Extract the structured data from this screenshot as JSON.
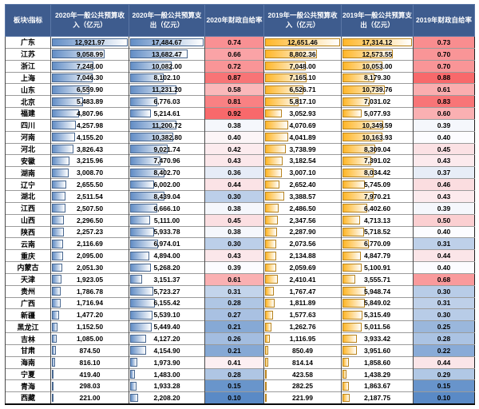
{
  "chart_data": {
    "type": "table",
    "title": "",
    "columns": [
      "板块\\指标",
      "2020年一般公共预算收入（亿元）",
      "2020年一般公共预算支出（亿元）",
      "2020年财政自给率",
      "2019年一般公共预算收入（亿元）",
      "2019年一般公共预算支出（亿元）",
      "2019年财政自给率"
    ],
    "rows": [
      {
        "name": "广东",
        "rev_2020": "12,921.97",
        "exp_2020": "17,484.67",
        "rate_2020": "0.74",
        "rev_2019": "12,651.46",
        "exp_2019": "17,314.12",
        "rate_2019": "0.73"
      },
      {
        "name": "江苏",
        "rev_2020": "9,058.99",
        "exp_2020": "13,682.47",
        "rate_2020": "0.66",
        "rev_2019": "8,802.36",
        "exp_2019": "12,573.55",
        "rate_2019": "0.70"
      },
      {
        "name": "浙江",
        "rev_2020": "7,248.00",
        "exp_2020": "10,082.00",
        "rate_2020": "0.72",
        "rev_2019": "7,048.00",
        "exp_2019": "10,053.00",
        "rate_2019": "0.70"
      },
      {
        "name": "上海",
        "rev_2020": "7,046.30",
        "exp_2020": "8,102.10",
        "rate_2020": "0.87",
        "rev_2019": "7,165.10",
        "exp_2019": "8,179.30",
        "rate_2019": "0.88"
      },
      {
        "name": "山东",
        "rev_2020": "6,559.90",
        "exp_2020": "11,231.20",
        "rate_2020": "0.58",
        "rev_2019": "6,526.71",
        "exp_2019": "10,739.76",
        "rate_2019": "0.61"
      },
      {
        "name": "北京",
        "rev_2020": "5,483.89",
        "exp_2020": "6,776.03",
        "rate_2020": "0.81",
        "rev_2019": "5,817.10",
        "exp_2019": "7,031.02",
        "rate_2019": "0.83"
      },
      {
        "name": "福建",
        "rev_2020": "4,807.96",
        "exp_2020": "5,214.61",
        "rate_2020": "0.92",
        "rev_2019": "3,052.93",
        "exp_2019": "5,077.93",
        "rate_2019": "0.60"
      },
      {
        "name": "四川",
        "rev_2020": "4,257.98",
        "exp_2020": "11,200.72",
        "rate_2020": "0.38",
        "rev_2019": "4,070.69",
        "exp_2019": "10,349.59",
        "rate_2019": "0.39"
      },
      {
        "name": "河南",
        "rev_2020": "4,155.20",
        "exp_2020": "10,382.80",
        "rate_2020": "0.40",
        "rev_2019": "4,041.89",
        "exp_2019": "10,163.93",
        "rate_2019": "0.40"
      },
      {
        "name": "河北",
        "rev_2020": "3,826.43",
        "exp_2020": "9,021.74",
        "rate_2020": "0.42",
        "rev_2019": "3,738.99",
        "exp_2019": "8,309.04",
        "rate_2019": "0.45"
      },
      {
        "name": "安徽",
        "rev_2020": "3,215.96",
        "exp_2020": "7,470.96",
        "rate_2020": "0.43",
        "rev_2019": "3,182.54",
        "exp_2019": "7,391.02",
        "rate_2019": "0.43"
      },
      {
        "name": "湖南",
        "rev_2020": "3,008.70",
        "exp_2020": "8,402.70",
        "rate_2020": "0.36",
        "rev_2019": "3,007.10",
        "exp_2019": "8,034.42",
        "rate_2019": "0.37"
      },
      {
        "name": "辽宁",
        "rev_2020": "2,655.50",
        "exp_2020": "6,002.00",
        "rate_2020": "0.44",
        "rev_2019": "2,652.40",
        "exp_2019": "5,745.09",
        "rate_2019": "0.46"
      },
      {
        "name": "湖北",
        "rev_2020": "2,511.54",
        "exp_2020": "8,439.04",
        "rate_2020": "0.30",
        "rev_2019": "3,388.57",
        "exp_2019": "7,970.21",
        "rate_2019": "0.43"
      },
      {
        "name": "江西",
        "rev_2020": "2,507.50",
        "exp_2020": "6,666.10",
        "rate_2020": "0.38",
        "rev_2019": "2,486.50",
        "exp_2019": "6,402.60",
        "rate_2019": "0.39"
      },
      {
        "name": "山西",
        "rev_2020": "2,296.50",
        "exp_2020": "5,111.00",
        "rate_2020": "0.45",
        "rev_2019": "2,347.56",
        "exp_2019": "4,713.13",
        "rate_2019": "0.50"
      },
      {
        "name": "陕西",
        "rev_2020": "2,257.23",
        "exp_2020": "5,933.78",
        "rate_2020": "0.38",
        "rev_2019": "2,287.90",
        "exp_2019": "5,718.52",
        "rate_2019": "0.40"
      },
      {
        "name": "云南",
        "rev_2020": "2,116.69",
        "exp_2020": "6,974.01",
        "rate_2020": "0.30",
        "rev_2019": "2,073.56",
        "exp_2019": "6,770.09",
        "rate_2019": "0.31"
      },
      {
        "name": "重庆",
        "rev_2020": "2,095.00",
        "exp_2020": "4,894.00",
        "rate_2020": "0.43",
        "rev_2019": "2,134.88",
        "exp_2019": "4,847.79",
        "rate_2019": "0.44"
      },
      {
        "name": "内蒙古",
        "rev_2020": "2,051.30",
        "exp_2020": "5,268.20",
        "rate_2020": "0.39",
        "rev_2019": "2,059.69",
        "exp_2019": "5,100.91",
        "rate_2019": "0.40"
      },
      {
        "name": "天津",
        "rev_2020": "1,923.05",
        "exp_2020": "3,151.37",
        "rate_2020": "0.61",
        "rev_2019": "2,410.41",
        "exp_2019": "3,555.71",
        "rate_2019": "0.68"
      },
      {
        "name": "贵州",
        "rev_2020": "1,786.78",
        "exp_2020": "5,723.27",
        "rate_2020": "0.31",
        "rev_2019": "1,767.47",
        "exp_2019": "5,948.74",
        "rate_2019": "0.30"
      },
      {
        "name": "广西",
        "rev_2020": "1,716.94",
        "exp_2020": "6,155.42",
        "rate_2020": "0.28",
        "rev_2019": "1,811.89",
        "exp_2019": "5,849.02",
        "rate_2019": "0.31"
      },
      {
        "name": "新疆",
        "rev_2020": "1,477.20",
        "exp_2020": "5,539.10",
        "rate_2020": "0.27",
        "rev_2019": "1,577.63",
        "exp_2019": "5,315.49",
        "rate_2019": "0.30"
      },
      {
        "name": "黑龙江",
        "rev_2020": "1,152.50",
        "exp_2020": "5,449.40",
        "rate_2020": "0.21",
        "rev_2019": "1,262.76",
        "exp_2019": "5,011.56",
        "rate_2019": "0.25"
      },
      {
        "name": "吉林",
        "rev_2020": "1,085.00",
        "exp_2020": "4,127.20",
        "rate_2020": "0.26",
        "rev_2019": "1,116.95",
        "exp_2019": "3,933.42",
        "rate_2019": "0.28"
      },
      {
        "name": "甘肃",
        "rev_2020": "874.50",
        "exp_2020": "4,154.90",
        "rate_2020": "0.21",
        "rev_2019": "850.49",
        "exp_2019": "3,951.60",
        "rate_2019": "0.22"
      },
      {
        "name": "海南",
        "rev_2020": "816.10",
        "exp_2020": "1,973.90",
        "rate_2020": "0.41",
        "rev_2019": "814.14",
        "exp_2019": "1,858.60",
        "rate_2019": "0.44"
      },
      {
        "name": "宁夏",
        "rev_2020": "419.40",
        "exp_2020": "1,483.00",
        "rate_2020": "0.28",
        "rev_2019": "423.58",
        "exp_2019": "1,438.29",
        "rate_2019": "0.29"
      },
      {
        "name": "青海",
        "rev_2020": "298.03",
        "exp_2020": "1,933.28",
        "rate_2020": "0.15",
        "rev_2019": "282.25",
        "exp_2019": "1,863.67",
        "rate_2019": "0.15"
      },
      {
        "name": "西藏",
        "rev_2020": "221.00",
        "exp_2020": "2,208.20",
        "rate_2020": "0.10",
        "rev_2019": "221.99",
        "exp_2019": "2,187.75",
        "rate_2019": "0.10"
      }
    ],
    "conditional_formatting": {
      "data_bar_2020_color": "#638EC6",
      "data_bar_2019_color": "#FFB628",
      "rate_scale_min_color": "#5A8AC6",
      "rate_scale_mid_color": "#FCFCFF",
      "rate_scale_max_color": "#F8696B"
    }
  },
  "styles": {
    "header_bg": "#3E5C8E",
    "header_text": "#FFFFFF",
    "row_line": "#9B9B9B",
    "col_line": "#4A4A4A",
    "outer_border": "#222222"
  }
}
